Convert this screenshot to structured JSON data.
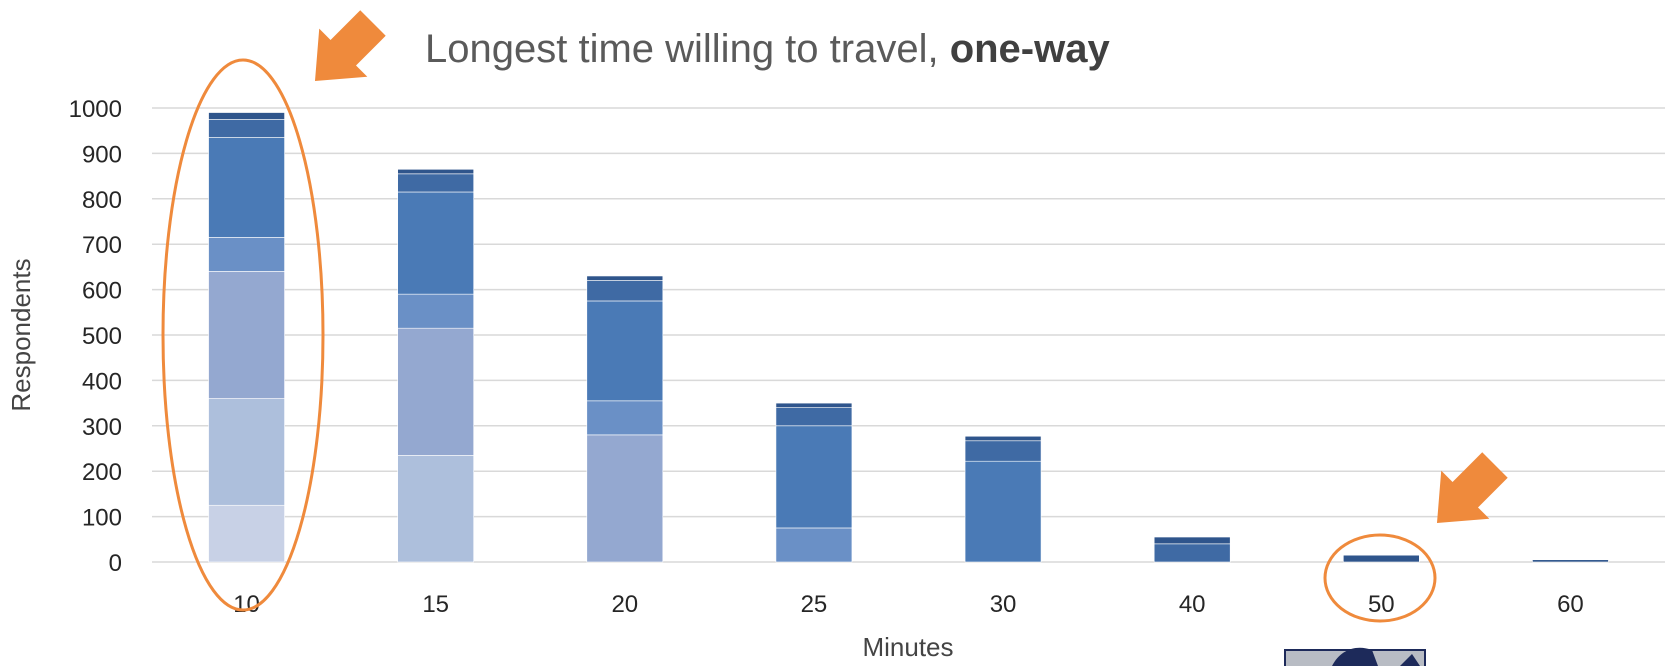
{
  "chart_data": {
    "type": "bar",
    "stacked": true,
    "title_prefix": "Longest time willing to travel, ",
    "title_emphasis": "one-way",
    "xlabel": "Minutes",
    "ylabel": "Respondents",
    "ylim": [
      0,
      1000
    ],
    "y_ticks": [
      0,
      100,
      200,
      300,
      400,
      500,
      600,
      700,
      800,
      900,
      1000
    ],
    "grid": true,
    "categories": [
      "10",
      "15",
      "20",
      "25",
      "30",
      "40",
      "50",
      "60"
    ],
    "series": [
      {
        "values": [
          125,
          0,
          0,
          0,
          0,
          0,
          0,
          0
        ]
      },
      {
        "values": [
          235,
          235,
          0,
          0,
          0,
          0,
          0,
          0
        ]
      },
      {
        "values": [
          280,
          280,
          280,
          0,
          0,
          0,
          0,
          0
        ]
      },
      {
        "values": [
          75,
          75,
          75,
          75,
          0,
          0,
          0,
          0
        ]
      },
      {
        "values": [
          220,
          225,
          220,
          225,
          222,
          0,
          0,
          0
        ]
      },
      {
        "values": [
          40,
          40,
          45,
          40,
          45,
          40,
          0,
          0
        ]
      },
      {
        "values": [
          15,
          10,
          10,
          10,
          10,
          15,
          15,
          5
        ]
      }
    ],
    "colors": [
      "#c8d1e6",
      "#adbfdc",
      "#94a8d0",
      "#6a90c6",
      "#4a7ab6",
      "#3f6aa4",
      "#2f558c"
    ],
    "annotation_color": "#ef8a3c",
    "highlighted_categories": [
      "10",
      "50"
    ]
  }
}
